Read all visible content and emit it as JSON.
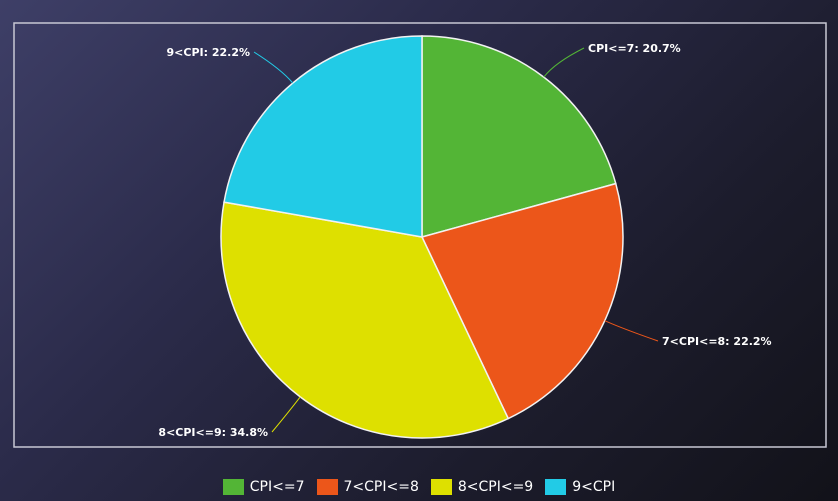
{
  "chart_data": {
    "type": "pie",
    "title": "",
    "slices": [
      {
        "label": "CPI<=7",
        "value": 20.7,
        "color": "#53b536",
        "callout": "CPI<=7: 20.7%"
      },
      {
        "label": "7<CPI<=8",
        "value": 22.2,
        "color": "#ec561a",
        "callout": "7<CPI<=8: 22.2%"
      },
      {
        "label": "8<CPI<=9",
        "value": 34.8,
        "color": "#dee000",
        "callout": "8<CPI<=9: 34.8%"
      },
      {
        "label": "9<CPI",
        "value": 22.2,
        "color": "#22cbe6",
        "callout": "9<CPI: 22.2%"
      }
    ],
    "legend": {
      "placement": "bottom",
      "entries": [
        "CPI<=7",
        "7<CPI<=8",
        "8<CPI<=9",
        "9<CPI"
      ]
    }
  }
}
